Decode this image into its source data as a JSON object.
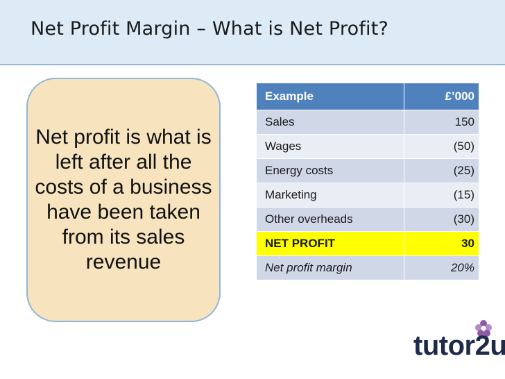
{
  "slide": {
    "title": "Net Profit Margin – What is Net Profit?"
  },
  "callout": {
    "text": "Net profit is what is left after all the costs of a business have been taken from its sales revenue"
  },
  "table": {
    "headers": [
      "Example",
      "£’000"
    ],
    "rows": [
      {
        "label": "Sales",
        "value": "150"
      },
      {
        "label": "Wages",
        "value": "(50)"
      },
      {
        "label": "Energy costs",
        "value": "(25)"
      },
      {
        "label": "Marketing",
        "value": "(15)"
      },
      {
        "label": "Other overheads",
        "value": "(30)"
      },
      {
        "label": "NET PROFIT",
        "value": "30"
      },
      {
        "label": "Net profit margin",
        "value": "20%"
      }
    ]
  },
  "logo": {
    "text": "tutor2u",
    "colors": {
      "text": "#1e2b48",
      "flower": "#8e5aa8"
    }
  },
  "colors": {
    "title_band": "#dcebf6",
    "callout_fill": "#f7e4bf",
    "table_header": "#4f81bd",
    "row_fill": "#d0d8e8",
    "row_alt_fill": "#e9edf4",
    "highlight": "#ffff00"
  }
}
